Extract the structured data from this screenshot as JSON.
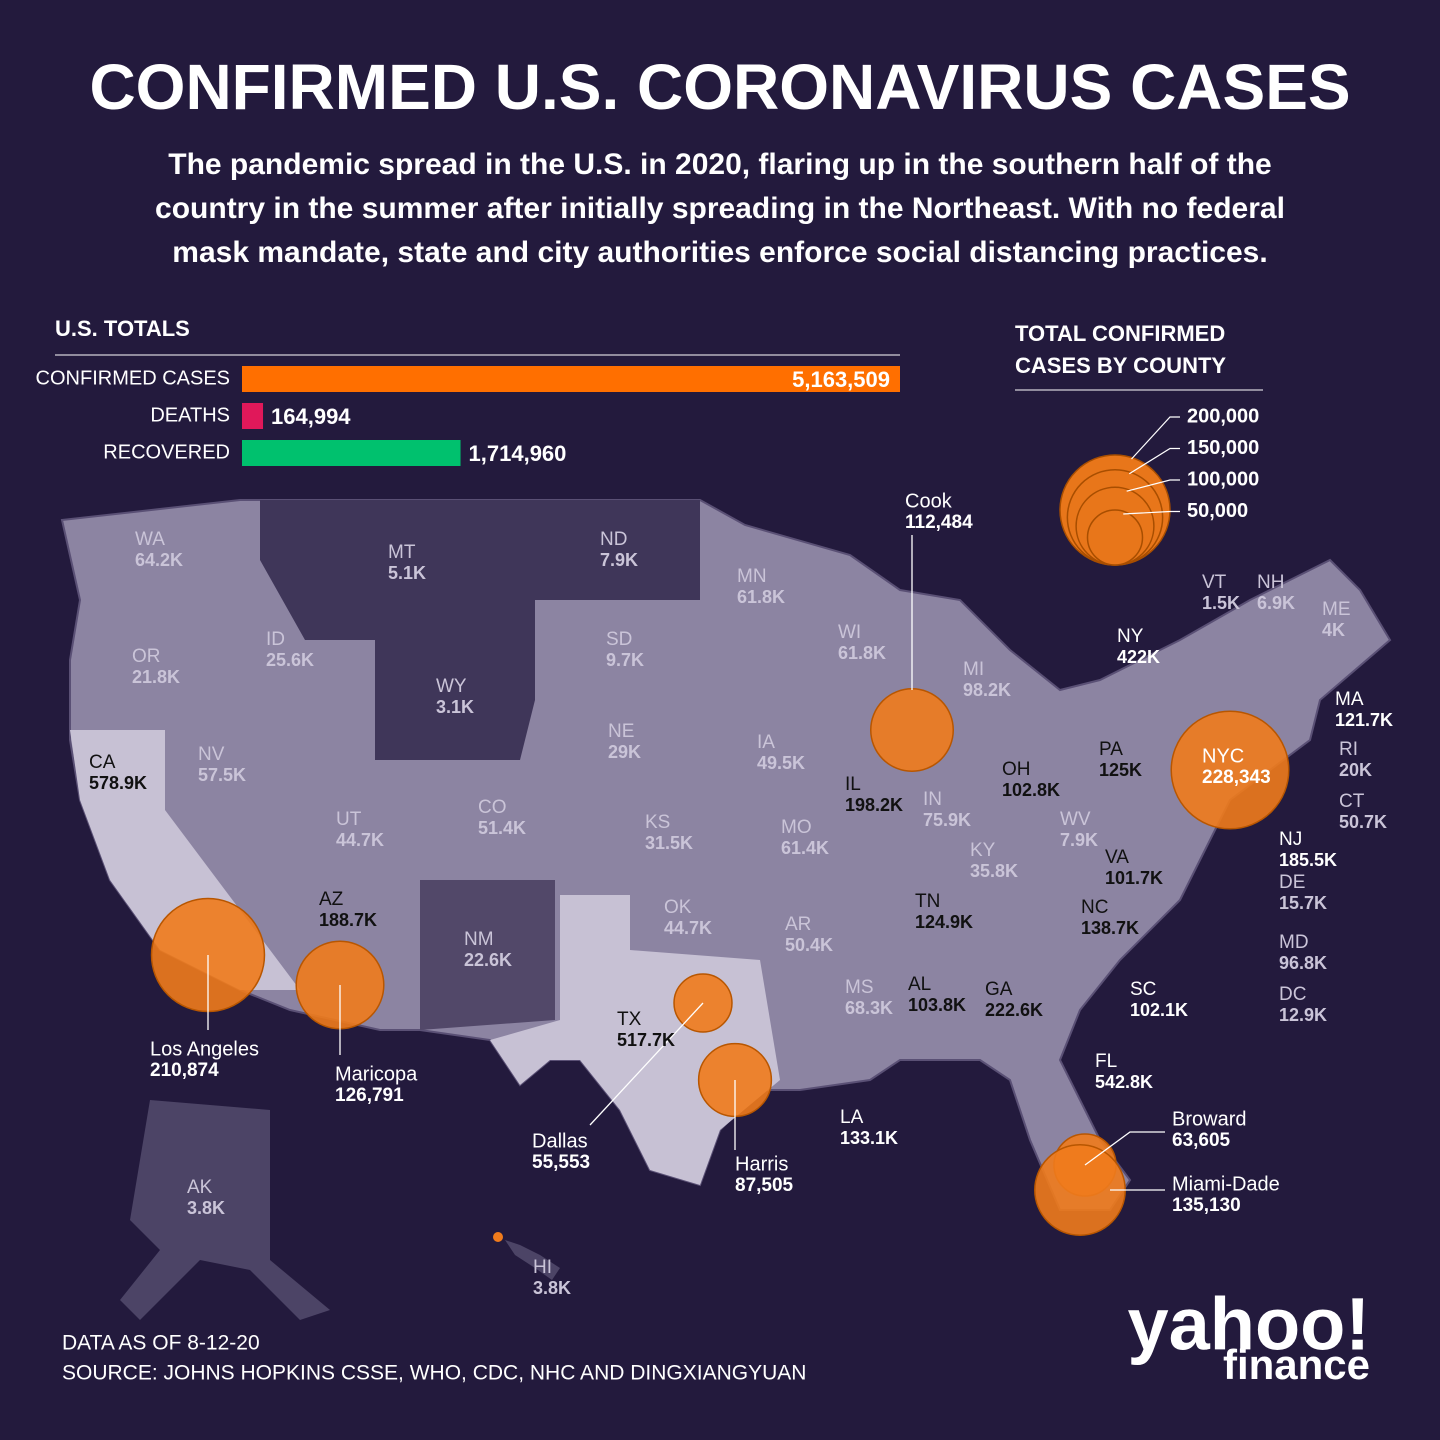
{
  "title": "CONFIRMED U.S. CORONAVIRUS CASES",
  "subtitle": [
    "The pandemic spread in the U.S. in 2020, flaring up in the southern half of the",
    "country in the summer after initially spreading in the Northeast. With no federal",
    "mask mandate, state and city authorities enforce social distancing practices."
  ],
  "totals": {
    "title": "U.S. TOTALS",
    "rows": [
      {
        "label": "CONFIRMED CASES",
        "value": 5163509,
        "value_label": "5,163,509",
        "color": "#ff6f00"
      },
      {
        "label": "DEATHS",
        "value": 164994,
        "value_label": "164,994",
        "color": "#e0185a"
      },
      {
        "label": "RECOVERED",
        "value": 1714960,
        "value_label": "1,714,960",
        "color": "#00c16e"
      }
    ]
  },
  "legend": {
    "title": [
      "TOTAL CONFIRMED",
      "CASES BY COUNTY"
    ],
    "sizes": [
      {
        "value": 200000,
        "label": "200,000"
      },
      {
        "value": 150000,
        "label": "150,000"
      },
      {
        "value": 100000,
        "label": "100,000"
      },
      {
        "value": 50000,
        "label": "50,000"
      }
    ]
  },
  "states": [
    {
      "name": "WA",
      "value": "64.2K"
    },
    {
      "name": "MT",
      "value": "5.1K"
    },
    {
      "name": "ND",
      "value": "7.9K"
    },
    {
      "name": "MN",
      "value": "61.8K"
    },
    {
      "name": "VT",
      "value": "1.5K"
    },
    {
      "name": "NH",
      "value": "6.9K"
    },
    {
      "name": "ME",
      "value": "4K"
    },
    {
      "name": "OR",
      "value": "21.8K"
    },
    {
      "name": "ID",
      "value": "25.6K"
    },
    {
      "name": "SD",
      "value": "9.7K"
    },
    {
      "name": "WI",
      "value": "61.8K"
    },
    {
      "name": "NY",
      "value": "422K"
    },
    {
      "name": "MI",
      "value": "98.2K"
    },
    {
      "name": "WY",
      "value": "3.1K"
    },
    {
      "name": "NE",
      "value": "29K"
    },
    {
      "name": "IA",
      "value": "49.5K"
    },
    {
      "name": "MA",
      "value": "121.7K"
    },
    {
      "name": "NV",
      "value": "57.5K"
    },
    {
      "name": "CA",
      "value": "578.9K"
    },
    {
      "name": "PA",
      "value": "125K"
    },
    {
      "name": "RI",
      "value": "20K"
    },
    {
      "name": "IL",
      "value": "198.2K"
    },
    {
      "name": "OH",
      "value": "102.8K"
    },
    {
      "name": "UT",
      "value": "44.7K"
    },
    {
      "name": "CO",
      "value": "51.4K"
    },
    {
      "name": "IN",
      "value": "75.9K"
    },
    {
      "name": "KS",
      "value": "31.5K"
    },
    {
      "name": "MO",
      "value": "61.4K"
    },
    {
      "name": "CT",
      "value": "50.7K"
    },
    {
      "name": "WV",
      "value": "7.9K"
    },
    {
      "name": "KY",
      "value": "35.8K"
    },
    {
      "name": "NJ",
      "value": "185.5K"
    },
    {
      "name": "VA",
      "value": "101.7K"
    },
    {
      "name": "AZ",
      "value": "188.7K"
    },
    {
      "name": "OK",
      "value": "44.7K"
    },
    {
      "name": "TN",
      "value": "124.9K"
    },
    {
      "name": "NC",
      "value": "138.7K"
    },
    {
      "name": "AR",
      "value": "50.4K"
    },
    {
      "name": "DE",
      "value": "15.7K"
    },
    {
      "name": "NM",
      "value": "22.6K"
    },
    {
      "name": "MD",
      "value": "96.8K"
    },
    {
      "name": "MS",
      "value": "68.3K"
    },
    {
      "name": "AL",
      "value": "103.8K"
    },
    {
      "name": "GA",
      "value": "222.6K"
    },
    {
      "name": "SC",
      "value": "102.1K"
    },
    {
      "name": "DC",
      "value": "12.9K"
    },
    {
      "name": "TX",
      "value": "517.7K"
    },
    {
      "name": "FL",
      "value": "542.8K"
    },
    {
      "name": "LA",
      "value": "133.1K"
    },
    {
      "name": "AK",
      "value": "3.8K"
    },
    {
      "name": "HI",
      "value": "3.8K"
    }
  ],
  "counties": [
    {
      "name": "Cook",
      "value": 112484,
      "value_label": "112,484"
    },
    {
      "name": "NYC",
      "value": 228343,
      "value_label": "228,343"
    },
    {
      "name": "Los Angeles",
      "value": 210874,
      "value_label": "210,874"
    },
    {
      "name": "Maricopa",
      "value": 126791,
      "value_label": "126,791"
    },
    {
      "name": "Dallas",
      "value": 55553,
      "value_label": "55,553"
    },
    {
      "name": "Harris",
      "value": 87505,
      "value_label": "87,505"
    },
    {
      "name": "Broward",
      "value": 63605,
      "value_label": "63,605"
    },
    {
      "name": "Miami-Dade",
      "value": 135130,
      "value_label": "135,130"
    }
  ],
  "footer": {
    "date": "DATA AS OF 8-12-20",
    "source": "SOURCE:  JOHNS HOPKINS CSSE, WHO, CDC, NHC AND DINGXIANGYUAN"
  },
  "logo": {
    "brand": "yahoo!",
    "product": "finance"
  }
}
